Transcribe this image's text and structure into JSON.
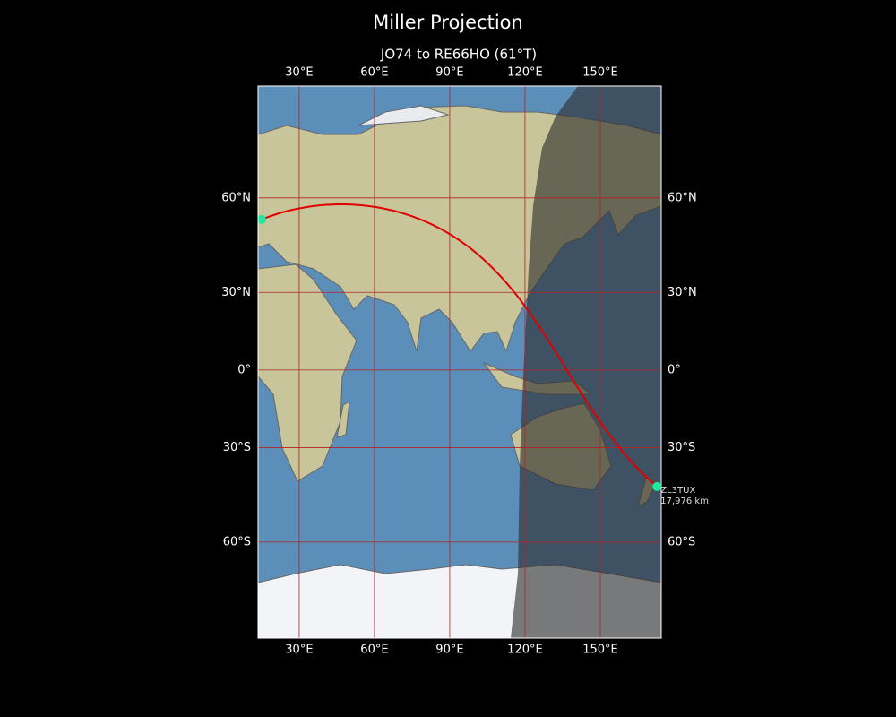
{
  "title": "Miller Projection",
  "subtitle": "JO74 to RE66HO (61°T)",
  "map": {
    "lon_range": [
      13.6,
      174.3
    ],
    "lat_range": [
      -80.8,
      83.4
    ],
    "lon_ticks": [
      {
        "value": 30,
        "label": "30°E"
      },
      {
        "value": 60,
        "label": "60°E"
      },
      {
        "value": 90,
        "label": "90°E"
      },
      {
        "value": 120,
        "label": "120°E"
      },
      {
        "value": 150,
        "label": "150°E"
      }
    ],
    "lat_ticks": [
      {
        "value": 60,
        "label": "60°N"
      },
      {
        "value": 30,
        "label": "30°N"
      },
      {
        "value": 0,
        "label": "0°"
      },
      {
        "value": -30,
        "label": "30°S"
      },
      {
        "value": -60,
        "label": "60°S"
      }
    ],
    "grid_color": "#b22222",
    "path_color": "#e00000",
    "marker_color": "#1de9a0",
    "start": {
      "lon": 15,
      "lat": 54
    },
    "end": {
      "lon": 172.6,
      "lat": -43.5,
      "label": "ZL3TUX",
      "distance": "17,976 km"
    }
  }
}
